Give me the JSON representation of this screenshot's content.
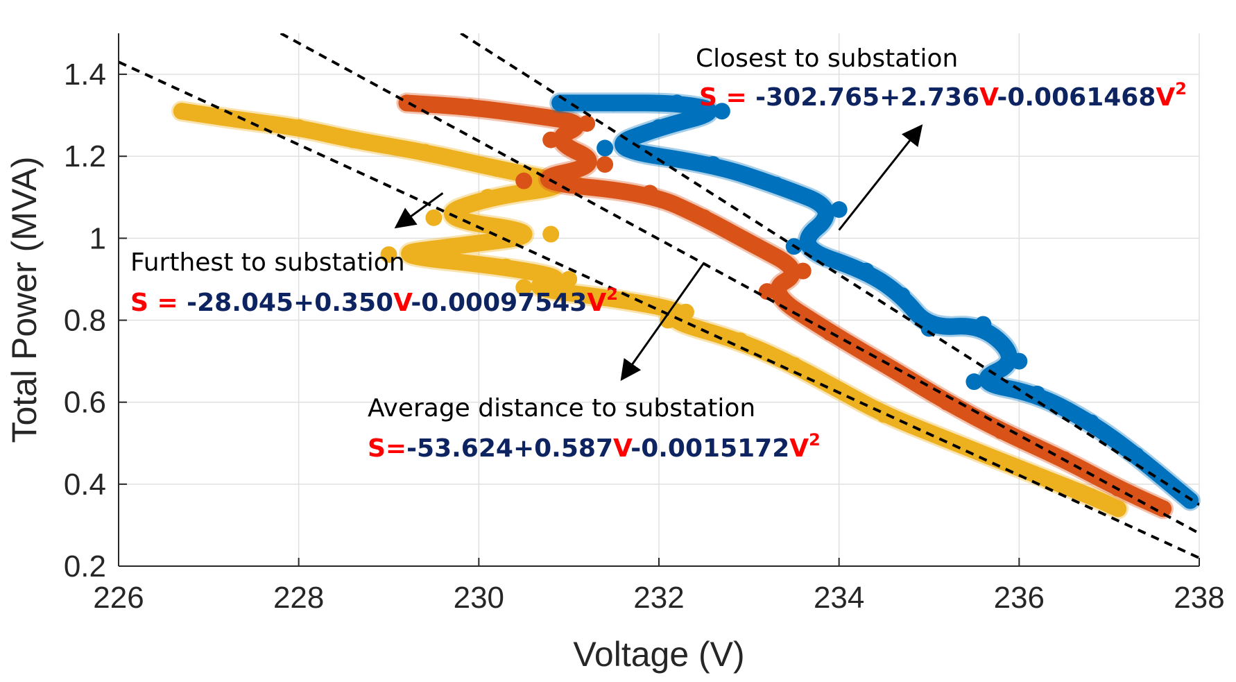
{
  "chart_data": {
    "type": "scatter",
    "xlabel": "Voltage (V)",
    "ylabel": "Total Power (MVA)",
    "xlim": [
      226,
      238
    ],
    "ylim": [
      0.2,
      1.5
    ],
    "xticks": [
      "226",
      "228",
      "230",
      "232",
      "234",
      "236",
      "238"
    ],
    "xtick_values": [
      226,
      228,
      230,
      232,
      234,
      236,
      238
    ],
    "yticks": [
      "0.2",
      "0.4",
      "0.6",
      "0.8",
      "1",
      "1.2",
      "1.4"
    ],
    "ytick_values": [
      0.2,
      0.4,
      0.6,
      0.8,
      1.0,
      1.2,
      1.4
    ],
    "grid": true,
    "series": [
      {
        "name": "Furthest to substation",
        "color": "#EDB120",
        "x": [
          226.7,
          227.3,
          228.0,
          228.6,
          229.4,
          230.2,
          231.1,
          230.1,
          229.5,
          230.8,
          229.7,
          229.0,
          230.3,
          231.0,
          230.5,
          231.6,
          232.3,
          232.1,
          232.9,
          233.5,
          234.0,
          234.5,
          235.3,
          236.1,
          236.8,
          237.1
        ],
        "y": [
          1.31,
          1.29,
          1.27,
          1.24,
          1.21,
          1.17,
          1.13,
          1.1,
          1.05,
          1.01,
          0.98,
          0.96,
          0.93,
          0.9,
          0.88,
          0.85,
          0.82,
          0.8,
          0.75,
          0.69,
          0.63,
          0.57,
          0.5,
          0.43,
          0.37,
          0.34
        ]
      },
      {
        "name": "Average distance to substation",
        "color": "#D95319",
        "x": [
          229.2,
          229.9,
          230.6,
          231.2,
          230.8,
          231.4,
          230.5,
          231.9,
          232.5,
          233.0,
          233.6,
          233.2,
          233.9,
          234.6,
          235.2,
          235.8,
          236.5,
          237.1,
          237.6
        ],
        "y": [
          1.33,
          1.32,
          1.3,
          1.28,
          1.24,
          1.18,
          1.14,
          1.11,
          1.05,
          0.99,
          0.92,
          0.87,
          0.77,
          0.68,
          0.6,
          0.53,
          0.46,
          0.39,
          0.34
        ]
      },
      {
        "name": "Closest to substation",
        "color": "#0072BD",
        "x": [
          230.9,
          231.5,
          232.2,
          232.7,
          232.0,
          231.4,
          232.6,
          233.3,
          234.0,
          233.5,
          234.3,
          234.7,
          235.0,
          235.6,
          236.0,
          235.5,
          236.2,
          236.8,
          237.3,
          237.9
        ],
        "y": [
          1.33,
          1.33,
          1.33,
          1.31,
          1.27,
          1.22,
          1.18,
          1.13,
          1.07,
          0.98,
          0.92,
          0.86,
          0.78,
          0.79,
          0.7,
          0.65,
          0.62,
          0.55,
          0.47,
          0.36
        ]
      }
    ],
    "fits": [
      {
        "name": "Furthest fit",
        "x": [
          226.0,
          238.0
        ],
        "y": [
          1.43,
          0.22
        ]
      },
      {
        "name": "Average fit",
        "x": [
          227.8,
          238.0
        ],
        "y": [
          1.5,
          0.28
        ]
      },
      {
        "name": "Closest fit",
        "x": [
          229.8,
          238.0
        ],
        "y": [
          1.5,
          0.35
        ]
      }
    ],
    "annotations": {
      "closest": {
        "label": "Closest to substation",
        "eq_s": "S = ",
        "eq_1": "-302.765+2.736",
        "eq_v1": "V",
        "eq_2": "-0.0061468",
        "eq_v2": "V",
        "eq_exp": "2",
        "arrow_from": [
          234.0,
          1.02
        ],
        "arrow_to": [
          234.9,
          1.27
        ]
      },
      "furthest": {
        "label": "Furthest to substation",
        "eq_s": "S = ",
        "eq_1": "-28.045+0.350",
        "eq_v1": "V",
        "eq_2": "-0.00097543",
        "eq_v2": "V",
        "eq_exp": "2",
        "arrow_from": [
          229.6,
          1.11
        ],
        "arrow_to": [
          229.1,
          1.03
        ]
      },
      "average": {
        "label": "Average distance to substation",
        "eq_s": "S=",
        "eq_1": "-53.624+0.587",
        "eq_v1": "V",
        "eq_2": "-0.0015172",
        "eq_v2": "V",
        "eq_exp": "2",
        "arrow_from": [
          232.5,
          0.94
        ],
        "arrow_to": [
          231.6,
          0.66
        ]
      }
    },
    "colors": {
      "eq_red": "#FF0000",
      "eq_navy": "#0D2461",
      "fit_line": "#000000"
    }
  }
}
